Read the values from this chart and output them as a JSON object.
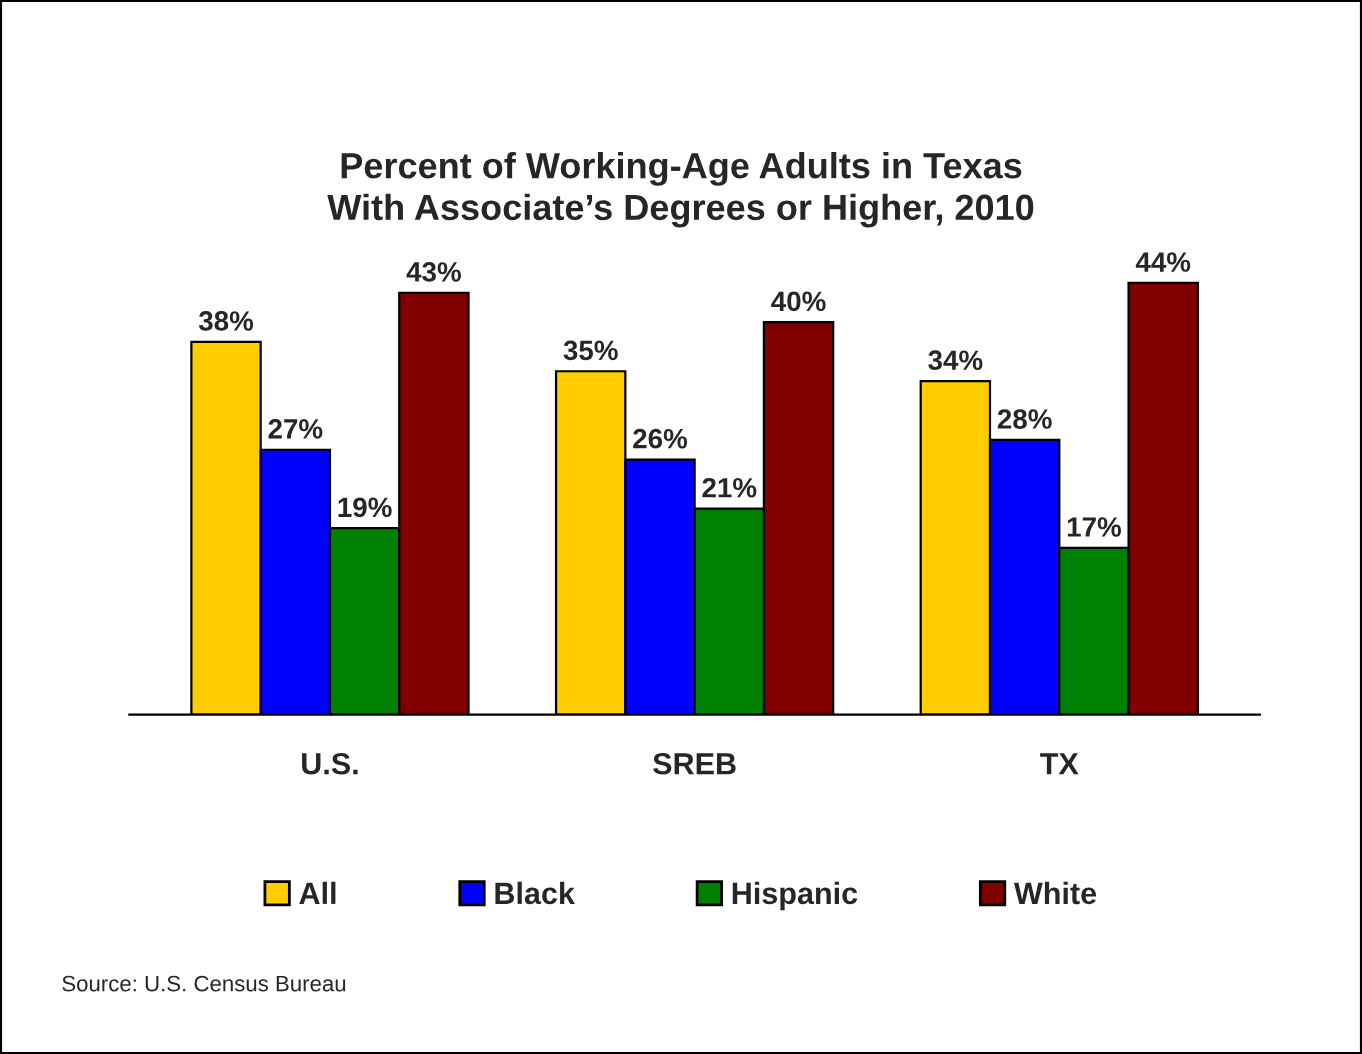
{
  "chart_data": {
    "type": "bar",
    "title": "Percent of Working-Age Adults in Texas\nWith Associate’s Degrees or Higher, 2010",
    "categories": [
      "U.S.",
      "SREB",
      "TX"
    ],
    "series": [
      {
        "name": "All",
        "color": "#ffcc00",
        "values": [
          38,
          35,
          34
        ],
        "value_labels": [
          "38%",
          "35%",
          "34%"
        ]
      },
      {
        "name": "Black",
        "color": "#0000ff",
        "values": [
          27,
          26,
          28
        ],
        "value_labels": [
          "27%",
          "26%",
          "28%"
        ]
      },
      {
        "name": "Hispanic",
        "color": "#008000",
        "values": [
          19,
          21,
          17
        ],
        "value_labels": [
          "19%",
          "21%",
          "17%"
        ]
      },
      {
        "name": "White",
        "color": "#800000",
        "values": [
          43,
          40,
          44
        ],
        "value_labels": [
          "43%",
          "40%",
          "44%"
        ]
      }
    ],
    "legend": "bottom",
    "tick_labels": "x",
    "grid": false,
    "annotations": [
      "Source: U.S. Census Bureau"
    ]
  }
}
